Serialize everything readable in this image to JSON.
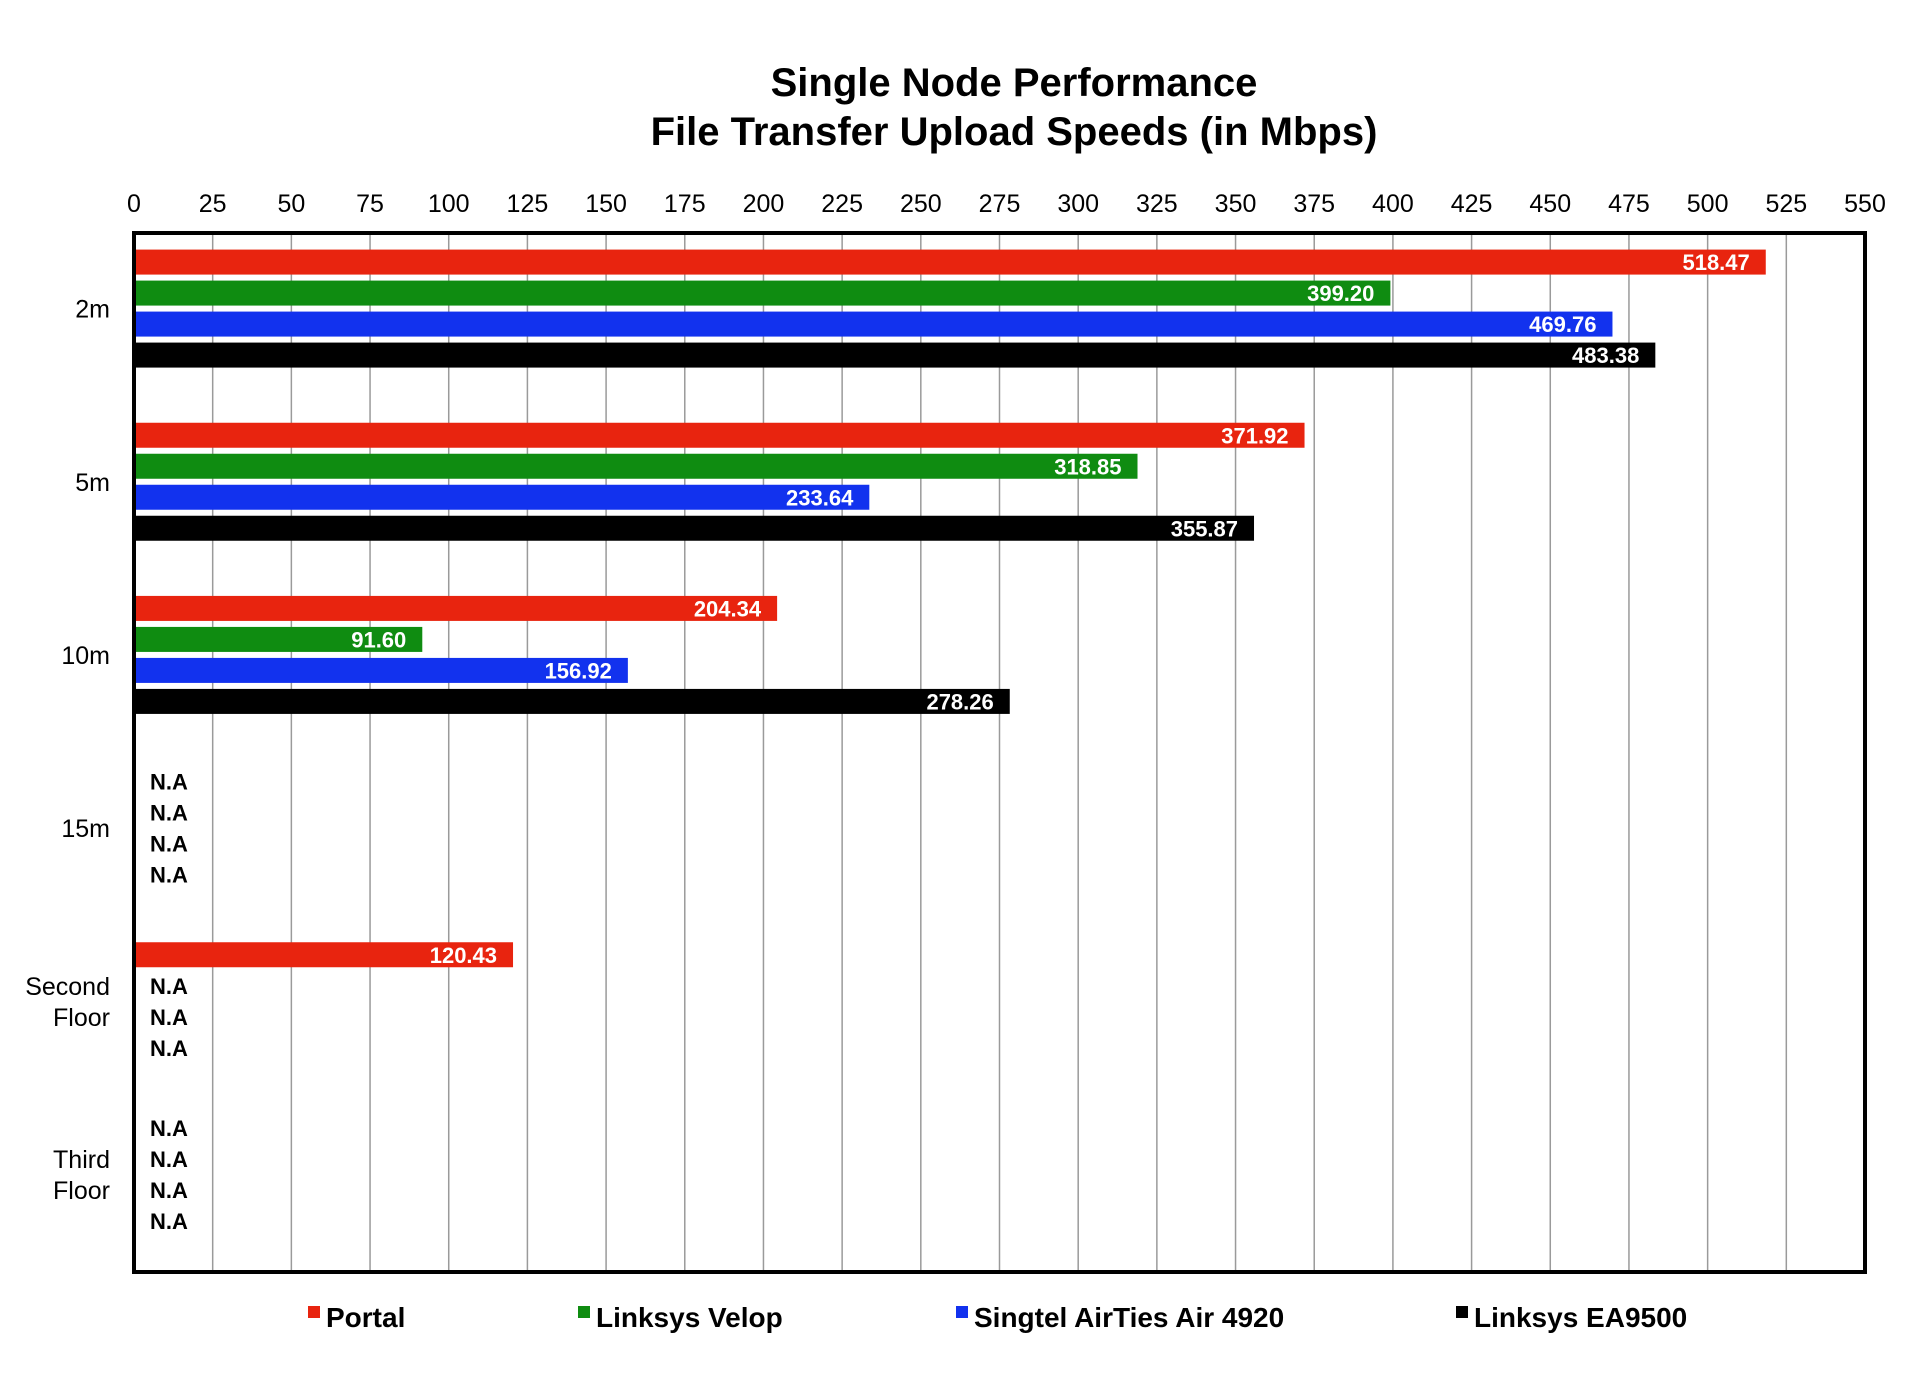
{
  "chart_data": {
    "type": "bar",
    "orientation": "horizontal",
    "title": [
      "Single Node Performance",
      "File Transfer Upload Speeds (in Mbps)"
    ],
    "xlim": [
      0,
      550
    ],
    "x_ticks": [
      "0",
      "25",
      "50",
      "75",
      "100",
      "125",
      "150",
      "175",
      "200",
      "225",
      "250",
      "275",
      "300",
      "325",
      "350",
      "375",
      "400",
      "425",
      "450",
      "475",
      "500",
      "525",
      "550"
    ],
    "x_tick_step": 25,
    "x_axis_position": "top",
    "grid": "vertical",
    "categories": [
      {
        "label_lines": [
          "2m"
        ]
      },
      {
        "label_lines": [
          "5m"
        ]
      },
      {
        "label_lines": [
          "10m"
        ]
      },
      {
        "label_lines": [
          "15m"
        ]
      },
      {
        "label_lines": [
          "Second",
          "Floor"
        ]
      },
      {
        "label_lines": [
          "Third",
          "Floor"
        ]
      }
    ],
    "missing_label": "N.A",
    "series": [
      {
        "name": "Portal",
        "color": "#e8240f",
        "values": [
          518.47,
          371.92,
          204.34,
          null,
          120.43,
          null
        ],
        "labels": [
          "518.47",
          "371.92",
          "204.34",
          "N.A",
          "120.43",
          "N.A"
        ]
      },
      {
        "name": "Linksys Velop",
        "color": "#0f8c11",
        "values": [
          399.2,
          318.85,
          91.6,
          null,
          null,
          null
        ],
        "labels": [
          "399.20",
          "318.85",
          "91.60",
          "N.A",
          "N.A",
          "N.A"
        ]
      },
      {
        "name": "Singtel AirTies Air 4920",
        "color": "#1232ee",
        "values": [
          469.76,
          233.64,
          156.92,
          null,
          null,
          null
        ],
        "labels": [
          "469.76",
          "233.64",
          "156.92",
          "N.A",
          "N.A",
          "N.A"
        ]
      },
      {
        "name": "Linksys EA9500",
        "color": "#000000",
        "values": [
          483.38,
          355.87,
          278.26,
          null,
          null,
          null
        ],
        "labels": [
          "483.38",
          "355.87",
          "278.26",
          "N.A",
          "N.A",
          "N.A"
        ]
      }
    ],
    "legend_position": "bottom"
  }
}
